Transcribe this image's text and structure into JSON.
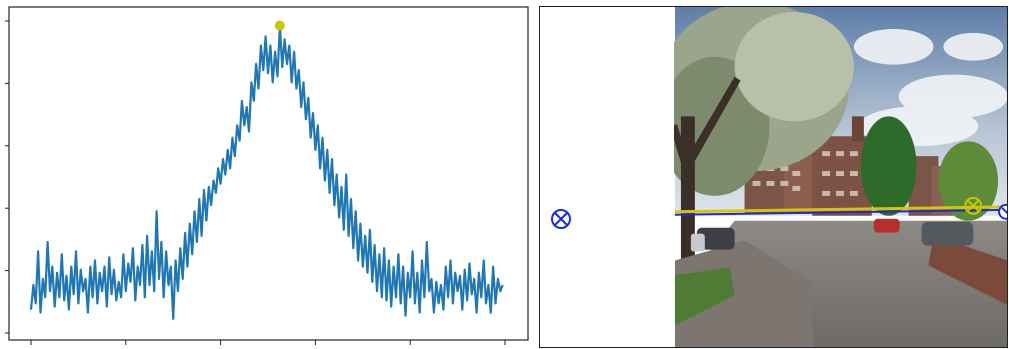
{
  "chart_data": {
    "type": "line",
    "title": "",
    "xlabel": "",
    "ylabel": "",
    "line_color": "#1f77b4",
    "peak_marker_color": "#c8c800",
    "xlim": [
      0,
      100
    ],
    "ylim": [
      0.0,
      1.0
    ],
    "peak": {
      "x": 52.5,
      "y": 0.985
    },
    "series": [
      {
        "values": [
          [
            0.0,
            0.06
          ],
          [
            0.5,
            0.14
          ],
          [
            1.0,
            0.08
          ],
          [
            1.5,
            0.25
          ],
          [
            2.0,
            0.05
          ],
          [
            2.5,
            0.16
          ],
          [
            3.0,
            0.1
          ],
          [
            3.5,
            0.28
          ],
          [
            4.0,
            0.12
          ],
          [
            4.5,
            0.2
          ],
          [
            5.0,
            0.07
          ],
          [
            5.5,
            0.18
          ],
          [
            6.0,
            0.1
          ],
          [
            6.5,
            0.24
          ],
          [
            7.0,
            0.09
          ],
          [
            7.5,
            0.17
          ],
          [
            8.0,
            0.06
          ],
          [
            8.5,
            0.2
          ],
          [
            9.0,
            0.11
          ],
          [
            9.5,
            0.25
          ],
          [
            10.0,
            0.08
          ],
          [
            10.5,
            0.19
          ],
          [
            11.0,
            0.12
          ],
          [
            11.5,
            0.16
          ],
          [
            12.0,
            0.05
          ],
          [
            12.5,
            0.2
          ],
          [
            13.0,
            0.1
          ],
          [
            13.5,
            0.22
          ],
          [
            14.0,
            0.08
          ],
          [
            14.5,
            0.18
          ],
          [
            15.0,
            0.12
          ],
          [
            15.5,
            0.2
          ],
          [
            16.0,
            0.07
          ],
          [
            16.5,
            0.23
          ],
          [
            17.0,
            0.11
          ],
          [
            17.5,
            0.19
          ],
          [
            18.0,
            0.09
          ],
          [
            18.5,
            0.15
          ],
          [
            19.0,
            0.1
          ],
          [
            19.5,
            0.24
          ],
          [
            20.0,
            0.12
          ],
          [
            20.5,
            0.21
          ],
          [
            21.0,
            0.15
          ],
          [
            21.5,
            0.26
          ],
          [
            22.0,
            0.09
          ],
          [
            22.5,
            0.2
          ],
          [
            23.0,
            0.14
          ],
          [
            23.5,
            0.27
          ],
          [
            24.0,
            0.1
          ],
          [
            24.5,
            0.3
          ],
          [
            25.0,
            0.14
          ],
          [
            25.5,
            0.25
          ],
          [
            26.0,
            0.12
          ],
          [
            26.5,
            0.38
          ],
          [
            27.0,
            0.16
          ],
          [
            27.5,
            0.28
          ],
          [
            28.0,
            0.1
          ],
          [
            28.5,
            0.25
          ],
          [
            29.0,
            0.14
          ],
          [
            29.5,
            0.2
          ],
          [
            30.0,
            0.03
          ],
          [
            30.5,
            0.22
          ],
          [
            31.0,
            0.12
          ],
          [
            31.5,
            0.26
          ],
          [
            32.0,
            0.16
          ],
          [
            32.5,
            0.31
          ],
          [
            33.0,
            0.2
          ],
          [
            33.5,
            0.34
          ],
          [
            34.0,
            0.24
          ],
          [
            34.5,
            0.38
          ],
          [
            35.0,
            0.28
          ],
          [
            35.5,
            0.42
          ],
          [
            36.0,
            0.3
          ],
          [
            36.5,
            0.45
          ],
          [
            37.0,
            0.35
          ],
          [
            37.5,
            0.46
          ],
          [
            38.0,
            0.4
          ],
          [
            38.5,
            0.48
          ],
          [
            39.0,
            0.44
          ],
          [
            39.5,
            0.52
          ],
          [
            40.0,
            0.47
          ],
          [
            40.5,
            0.55
          ],
          [
            41.0,
            0.5
          ],
          [
            41.5,
            0.58
          ],
          [
            42.0,
            0.52
          ],
          [
            42.5,
            0.62
          ],
          [
            43.0,
            0.56
          ],
          [
            43.5,
            0.66
          ],
          [
            44.0,
            0.61
          ],
          [
            44.5,
            0.74
          ],
          [
            45.0,
            0.66
          ],
          [
            45.5,
            0.72
          ],
          [
            46.0,
            0.64
          ],
          [
            46.5,
            0.8
          ],
          [
            47.0,
            0.74
          ],
          [
            47.5,
            0.86
          ],
          [
            48.0,
            0.78
          ],
          [
            48.5,
            0.92
          ],
          [
            49.0,
            0.84
          ],
          [
            49.5,
            0.95
          ],
          [
            50.0,
            0.83
          ],
          [
            50.5,
            0.92
          ],
          [
            51.0,
            0.8
          ],
          [
            51.5,
            0.9
          ],
          [
            52.0,
            0.82
          ],
          [
            52.5,
            0.985
          ],
          [
            53.0,
            0.85
          ],
          [
            53.5,
            0.94
          ],
          [
            54.0,
            0.86
          ],
          [
            54.5,
            0.92
          ],
          [
            55.0,
            0.8
          ],
          [
            55.5,
            0.9
          ],
          [
            56.0,
            0.78
          ],
          [
            56.5,
            0.84
          ],
          [
            57.0,
            0.72
          ],
          [
            57.5,
            0.8
          ],
          [
            58.0,
            0.68
          ],
          [
            58.5,
            0.75
          ],
          [
            59.0,
            0.62
          ],
          [
            59.5,
            0.7
          ],
          [
            60.0,
            0.58
          ],
          [
            60.5,
            0.66
          ],
          [
            61.0,
            0.52
          ],
          [
            61.5,
            0.62
          ],
          [
            62.0,
            0.48
          ],
          [
            62.5,
            0.58
          ],
          [
            63.0,
            0.44
          ],
          [
            63.5,
            0.55
          ],
          [
            64.0,
            0.4
          ],
          [
            64.5,
            0.5
          ],
          [
            65.0,
            0.36
          ],
          [
            65.5,
            0.46
          ],
          [
            66.0,
            0.32
          ],
          [
            66.5,
            0.5
          ],
          [
            67.0,
            0.3
          ],
          [
            67.5,
            0.42
          ],
          [
            68.0,
            0.26
          ],
          [
            68.5,
            0.38
          ],
          [
            69.0,
            0.22
          ],
          [
            69.5,
            0.34
          ],
          [
            70.0,
            0.2
          ],
          [
            70.5,
            0.3
          ],
          [
            71.0,
            0.18
          ],
          [
            71.5,
            0.32
          ],
          [
            72.0,
            0.15
          ],
          [
            72.5,
            0.27
          ],
          [
            73.0,
            0.12
          ],
          [
            73.5,
            0.24
          ],
          [
            74.0,
            0.1
          ],
          [
            74.5,
            0.26
          ],
          [
            75.0,
            0.09
          ],
          [
            75.5,
            0.22
          ],
          [
            76.0,
            0.07
          ],
          [
            76.5,
            0.2
          ],
          [
            77.0,
            0.1
          ],
          [
            77.5,
            0.24
          ],
          [
            78.0,
            0.08
          ],
          [
            78.5,
            0.2
          ],
          [
            79.0,
            0.04
          ],
          [
            79.5,
            0.18
          ],
          [
            80.0,
            0.1
          ],
          [
            80.5,
            0.25
          ],
          [
            81.0,
            0.08
          ],
          [
            81.5,
            0.18
          ],
          [
            82.0,
            0.05
          ],
          [
            82.5,
            0.22
          ],
          [
            83.0,
            0.1
          ],
          [
            83.5,
            0.28
          ],
          [
            84.0,
            0.12
          ],
          [
            84.5,
            0.16
          ],
          [
            85.0,
            0.05
          ],
          [
            85.5,
            0.15
          ],
          [
            86.0,
            0.08
          ],
          [
            86.5,
            0.14
          ],
          [
            87.0,
            0.06
          ],
          [
            87.5,
            0.2
          ],
          [
            88.0,
            0.1
          ],
          [
            88.5,
            0.22
          ],
          [
            89.0,
            0.08
          ],
          [
            89.5,
            0.18
          ],
          [
            90.0,
            0.12
          ],
          [
            90.5,
            0.17
          ],
          [
            91.0,
            0.06
          ],
          [
            91.5,
            0.19
          ],
          [
            92.0,
            0.09
          ],
          [
            92.5,
            0.21
          ],
          [
            93.0,
            0.11
          ],
          [
            93.5,
            0.16
          ],
          [
            94.0,
            0.05
          ],
          [
            94.5,
            0.18
          ],
          [
            95.0,
            0.1
          ],
          [
            95.5,
            0.22
          ],
          [
            96.0,
            0.08
          ],
          [
            96.5,
            0.14
          ],
          [
            97.0,
            0.05
          ],
          [
            97.5,
            0.2
          ],
          [
            98.0,
            0.08
          ],
          [
            98.5,
            0.16
          ],
          [
            99.0,
            0.12
          ],
          [
            99.5,
            0.14
          ]
        ]
      }
    ],
    "grid": false,
    "legend": "none"
  },
  "image_panel": {
    "horizon_line_color": "#d9c400",
    "horizon_line_color_2": "#1a2be0",
    "marker_color": "#1a2be0",
    "yellow_marker_color": "#c8c800"
  },
  "icons": {
    "marker_left": "crossed-circle-icon",
    "marker_photo_yellow": "crossed-circle-icon",
    "marker_photo_blue_edge": "half-circle-icon"
  }
}
